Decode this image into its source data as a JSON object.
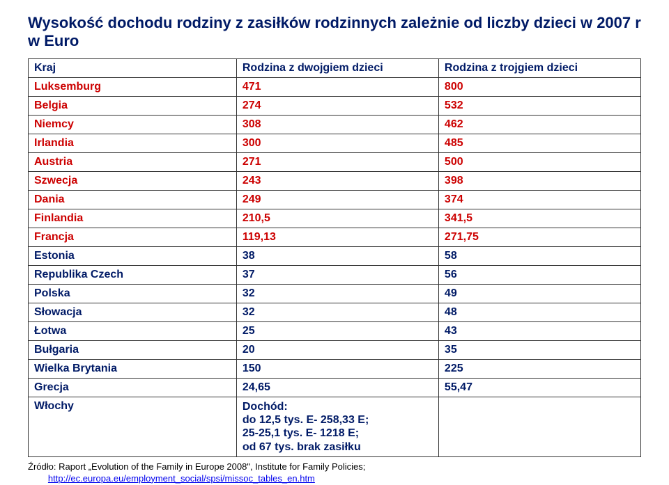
{
  "title": "Wysokość dochodu rodziny z zasiłków rodzinnych zależnie od liczby dzieci w 2007 r w Euro",
  "headers": {
    "col1": "Kraj",
    "col2": "Rodzina z dwojgiem dzieci",
    "col3": "Rodzina z trojgiem dzieci"
  },
  "rows": [
    {
      "country": "Luksemburg",
      "v2": "471",
      "v3": "800",
      "color": "red"
    },
    {
      "country": "Belgia",
      "v2": "274",
      "v3": "532",
      "color": "red"
    },
    {
      "country": "Niemcy",
      "v2": "308",
      "v3": "462",
      "color": "red"
    },
    {
      "country": "Irlandia",
      "v2": "300",
      "v3": "485",
      "color": "red"
    },
    {
      "country": "Austria",
      "v2": "271",
      "v3": "500",
      "color": "red"
    },
    {
      "country": "Szwecja",
      "v2": "243",
      "v3": "398",
      "color": "red"
    },
    {
      "country": "Dania",
      "v2": "249",
      "v3": "374",
      "color": "red"
    },
    {
      "country": "Finlandia",
      "v2": "210,5",
      "v3": "341,5",
      "color": "red"
    },
    {
      "country": "Francja",
      "v2": "119,13",
      "v3": "271,75",
      "color": "red"
    },
    {
      "country": "Estonia",
      "v2": "38",
      "v3": "58",
      "color": "blue"
    },
    {
      "country": "Republika Czech",
      "v2": "37",
      "v3": "56",
      "color": "blue"
    },
    {
      "country": "Polska",
      "v2": "32",
      "v3": "49",
      "color": "blue"
    },
    {
      "country": "Słowacja",
      "v2": "32",
      "v3": "48",
      "color": "blue"
    },
    {
      "country": "Łotwa",
      "v2": "25",
      "v3": "43",
      "color": "blue"
    },
    {
      "country": "Bułgaria",
      "v2": "20",
      "v3": "35",
      "color": "blue"
    },
    {
      "country": "Wielka Brytania",
      "v2": "150",
      "v3": "225",
      "color": "blue"
    },
    {
      "country": "Grecja",
      "v2": "24,65",
      "v3": "55,47",
      "color": "blue"
    },
    {
      "country": "Włochy",
      "v2": "Dochód:\ndo 12,5 tys. E- 258,33 E;\n25-25,1 tys. E- 1218 E;\nod 67 tys. brak zasiłku",
      "v3": "",
      "color": "blue",
      "multiline": true
    }
  ],
  "source": {
    "prefix": "Źródło: Raport „Evolution of the Family in Europe 2008\", Institute for Family Policies;",
    "link": "http://ec.europa.eu/employment_social/spsi/missoc_tables_en.htm"
  }
}
